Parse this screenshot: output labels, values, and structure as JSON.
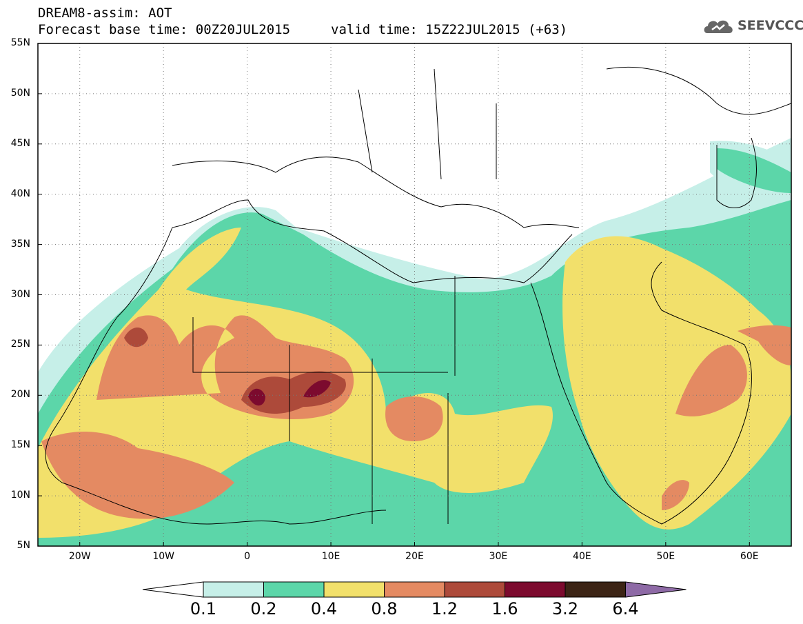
{
  "header": {
    "title": "DREAM8-assim: AOT",
    "base_time": "Forecast base time: 00Z20JUL2015",
    "valid_time": "valid time: 15Z22JUL2015 (+63)",
    "logo_text": "SEEVCCC"
  },
  "map": {
    "lat_labels": [
      "55N",
      "50N",
      "45N",
      "40N",
      "35N",
      "30N",
      "25N",
      "20N",
      "15N",
      "10N",
      "5N"
    ],
    "lon_labels": [
      "20W",
      "10W",
      "0",
      "10E",
      "20E",
      "30E",
      "40E",
      "50E",
      "60E"
    ],
    "extent": {
      "lon": [
        -25,
        65
      ],
      "lat": [
        5,
        55
      ]
    },
    "gridlines": "dotted"
  },
  "colorbar": {
    "levels": [
      "0.1",
      "0.2",
      "0.4",
      "0.8",
      "1.2",
      "1.6",
      "3.2",
      "6.4"
    ],
    "colors": [
      "#ffffff",
      "#c6efe8",
      "#5cd6a9",
      "#f2e06b",
      "#e48a62",
      "#ad4a3a",
      "#7c0a2e",
      "#3c2415",
      "#8e6aa6"
    ]
  }
}
